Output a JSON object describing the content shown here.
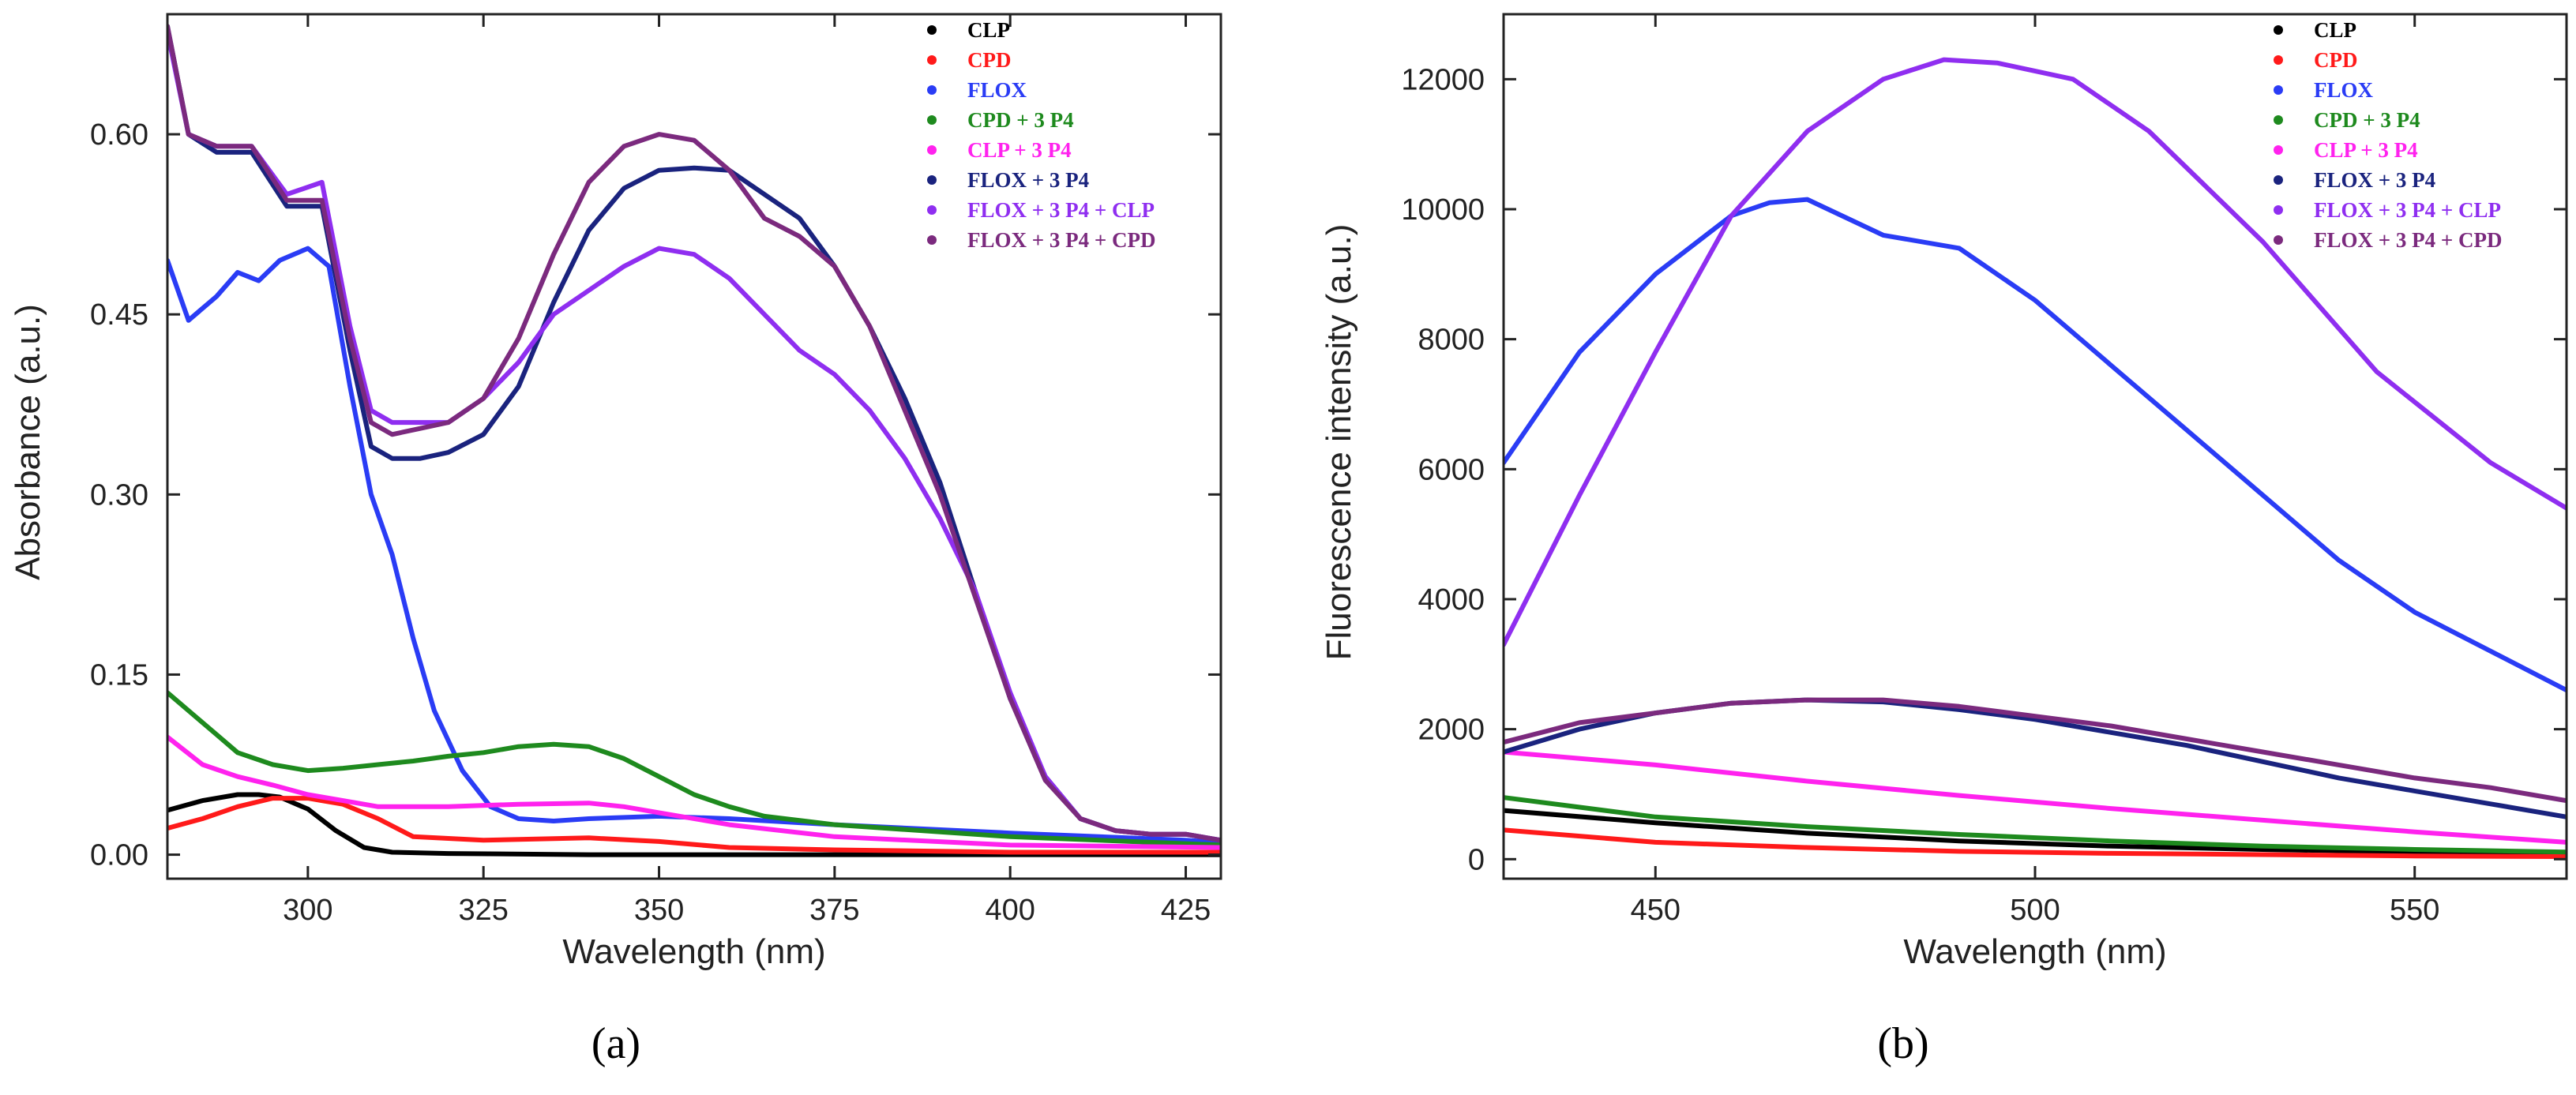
{
  "figure": {
    "panels": [
      {
        "label": "(a)"
      },
      {
        "label": "(b)"
      }
    ]
  },
  "chart_data": [
    {
      "type": "line",
      "panel_label": "(a)",
      "xlabel": "Wavelength (nm)",
      "ylabel": "Absorbance (a.u.)",
      "xlim": [
        280,
        430
      ],
      "ylim": [
        -0.02,
        0.7
      ],
      "xticks": [
        300,
        325,
        350,
        375,
        400,
        425
      ],
      "yticks": [
        0.0,
        0.15,
        0.3,
        0.45,
        0.6
      ],
      "ytick_labels": [
        "0.00",
        "0.15",
        "0.30",
        "0.45",
        "0.60"
      ],
      "legend_position": "top-right",
      "series": [
        {
          "name": "CLP",
          "color": "#000000",
          "x": [
            280,
            285,
            290,
            293,
            296,
            300,
            304,
            308,
            312,
            320,
            340,
            360,
            380,
            430
          ],
          "y": [
            0.037,
            0.045,
            0.05,
            0.05,
            0.048,
            0.038,
            0.02,
            0.006,
            0.002,
            0.001,
            0.0,
            0.0,
            0.0,
            0.0
          ]
        },
        {
          "name": "CPD",
          "color": "#ff1a1a",
          "x": [
            280,
            285,
            290,
            295,
            300,
            305,
            310,
            315,
            325,
            340,
            350,
            360,
            375,
            400,
            430
          ],
          "y": [
            0.022,
            0.03,
            0.04,
            0.047,
            0.047,
            0.042,
            0.03,
            0.015,
            0.012,
            0.014,
            0.011,
            0.006,
            0.004,
            0.002,
            0.002
          ]
        },
        {
          "name": "FLOX",
          "color": "#2a3cf5",
          "x": [
            280,
            283,
            287,
            290,
            293,
            296,
            300,
            303,
            306,
            309,
            312,
            315,
            318,
            322,
            326,
            330,
            335,
            340,
            350,
            360,
            375,
            400,
            425,
            430
          ],
          "y": [
            0.495,
            0.445,
            0.465,
            0.485,
            0.478,
            0.495,
            0.505,
            0.49,
            0.39,
            0.3,
            0.25,
            0.18,
            0.12,
            0.07,
            0.04,
            0.03,
            0.028,
            0.03,
            0.032,
            0.03,
            0.025,
            0.018,
            0.012,
            0.01
          ]
        },
        {
          "name": "CPD + 3 P4",
          "color": "#1e8a1e",
          "x": [
            280,
            283,
            287,
            290,
            295,
            300,
            305,
            310,
            315,
            320,
            325,
            330,
            335,
            340,
            345,
            350,
            355,
            360,
            365,
            375,
            400,
            430
          ],
          "y": [
            0.135,
            0.12,
            0.1,
            0.085,
            0.075,
            0.07,
            0.072,
            0.075,
            0.078,
            0.082,
            0.085,
            0.09,
            0.092,
            0.09,
            0.08,
            0.065,
            0.05,
            0.04,
            0.032,
            0.025,
            0.015,
            0.008
          ]
        },
        {
          "name": "CLP + 3 P4",
          "color": "#ff22ee",
          "x": [
            280,
            285,
            290,
            295,
            300,
            305,
            310,
            320,
            330,
            340,
            345,
            350,
            360,
            375,
            400,
            430
          ],
          "y": [
            0.098,
            0.075,
            0.065,
            0.058,
            0.05,
            0.045,
            0.04,
            0.04,
            0.042,
            0.043,
            0.04,
            0.035,
            0.025,
            0.015,
            0.008,
            0.006
          ]
        },
        {
          "name": "FLOX + 3 P4",
          "color": "#1a237e",
          "x": [
            280,
            283,
            287,
            292,
            297,
            302,
            306,
            309,
            312,
            316,
            320,
            325,
            330,
            335,
            340,
            345,
            350,
            355,
            360,
            365,
            370,
            375,
            380,
            385,
            390,
            395,
            400,
            405,
            410,
            415,
            420,
            425,
            430
          ],
          "y": [
            0.69,
            0.6,
            0.585,
            0.585,
            0.54,
            0.54,
            0.42,
            0.34,
            0.33,
            0.33,
            0.335,
            0.35,
            0.39,
            0.46,
            0.52,
            0.555,
            0.57,
            0.572,
            0.57,
            0.55,
            0.53,
            0.49,
            0.44,
            0.38,
            0.31,
            0.22,
            0.13,
            0.065,
            0.03,
            0.02,
            0.017,
            0.017,
            0.012
          ]
        },
        {
          "name": "FLOX + 3 P4 + CLP",
          "color": "#8f2ef0",
          "x": [
            280,
            283,
            287,
            292,
            297,
            302,
            306,
            309,
            312,
            316,
            320,
            325,
            330,
            335,
            340,
            345,
            350,
            355,
            360,
            365,
            370,
            375,
            380,
            385,
            390,
            395,
            400,
            405,
            410,
            415,
            420,
            425,
            430
          ],
          "y": [
            0.685,
            0.6,
            0.59,
            0.59,
            0.55,
            0.56,
            0.44,
            0.37,
            0.36,
            0.36,
            0.36,
            0.38,
            0.41,
            0.45,
            0.47,
            0.49,
            0.505,
            0.5,
            0.48,
            0.45,
            0.42,
            0.4,
            0.37,
            0.33,
            0.28,
            0.22,
            0.135,
            0.065,
            0.03,
            0.02,
            0.017,
            0.017,
            0.012
          ]
        },
        {
          "name": "FLOX + 3 P4 + CPD",
          "color": "#7b2a7e",
          "x": [
            280,
            283,
            287,
            292,
            297,
            302,
            306,
            309,
            312,
            316,
            320,
            325,
            330,
            335,
            340,
            345,
            350,
            355,
            360,
            365,
            370,
            375,
            380,
            385,
            390,
            395,
            400,
            405,
            410,
            415,
            420,
            425,
            430
          ],
          "y": [
            0.69,
            0.6,
            0.59,
            0.59,
            0.545,
            0.545,
            0.43,
            0.36,
            0.35,
            0.355,
            0.36,
            0.38,
            0.43,
            0.5,
            0.56,
            0.59,
            0.6,
            0.595,
            0.57,
            0.53,
            0.515,
            0.49,
            0.44,
            0.37,
            0.3,
            0.215,
            0.13,
            0.062,
            0.03,
            0.02,
            0.017,
            0.017,
            0.012
          ]
        }
      ]
    },
    {
      "type": "line",
      "panel_label": "(b)",
      "xlabel": "Wavelength (nm)",
      "ylabel": "Fluorescence intensity (a.u.)",
      "xlim": [
        430,
        570
      ],
      "ylim": [
        -300,
        13000
      ],
      "xticks": [
        450,
        500,
        550
      ],
      "yticks": [
        0,
        2000,
        4000,
        6000,
        8000,
        10000,
        12000
      ],
      "ytick_labels": [
        "0",
        "2000",
        "4000",
        "6000",
        "8000",
        "10000",
        "12000"
      ],
      "legend_position": "top-right",
      "series": [
        {
          "name": "CLP",
          "color": "#000000",
          "x": [
            430,
            450,
            470,
            490,
            510,
            530,
            550,
            570
          ],
          "y": [
            750,
            560,
            400,
            280,
            200,
            150,
            110,
            80
          ]
        },
        {
          "name": "CPD",
          "color": "#ff1a1a",
          "x": [
            430,
            450,
            470,
            490,
            510,
            530,
            550,
            570
          ],
          "y": [
            450,
            260,
            180,
            120,
            90,
            70,
            50,
            40
          ]
        },
        {
          "name": "FLOX",
          "color": "#2a3cf5",
          "x": [
            430,
            440,
            450,
            460,
            465,
            470,
            480,
            490,
            500,
            510,
            520,
            530,
            540,
            550,
            560,
            570
          ],
          "y": [
            6100,
            7800,
            9000,
            9900,
            10100,
            10150,
            9600,
            9400,
            8600,
            7600,
            6600,
            5600,
            4600,
            3800,
            3200,
            2600
          ]
        },
        {
          "name": "CPD + 3 P4",
          "color": "#1e8a1e",
          "x": [
            430,
            450,
            470,
            490,
            510,
            530,
            550,
            570
          ],
          "y": [
            950,
            650,
            500,
            380,
            280,
            200,
            150,
            110
          ]
        },
        {
          "name": "CLP + 3 P4",
          "color": "#ff22ee",
          "x": [
            430,
            450,
            470,
            490,
            510,
            530,
            550,
            570
          ],
          "y": [
            1650,
            1450,
            1200,
            980,
            780,
            600,
            420,
            260
          ]
        },
        {
          "name": "FLOX + 3 P4",
          "color": "#1a237e",
          "x": [
            430,
            440,
            450,
            460,
            470,
            480,
            490,
            500,
            510,
            520,
            530,
            540,
            550,
            560,
            570
          ],
          "y": [
            1650,
            2000,
            2250,
            2400,
            2450,
            2420,
            2300,
            2150,
            1950,
            1750,
            1500,
            1250,
            1050,
            850,
            650
          ]
        },
        {
          "name": "FLOX + 3 P4 + CLP",
          "color": "#8f2ef0",
          "x": [
            430,
            440,
            450,
            460,
            470,
            480,
            488,
            495,
            505,
            515,
            530,
            545,
            560,
            570
          ],
          "y": [
            3300,
            5600,
            7800,
            9900,
            11200,
            12000,
            12300,
            12250,
            12000,
            11200,
            9500,
            7500,
            6100,
            5400
          ]
        },
        {
          "name": "FLOX + 3 P4 + CPD",
          "color": "#7b2a7e",
          "x": [
            430,
            440,
            450,
            460,
            470,
            480,
            490,
            500,
            510,
            520,
            530,
            540,
            550,
            560,
            570
          ],
          "y": [
            1800,
            2100,
            2250,
            2400,
            2450,
            2450,
            2350,
            2200,
            2050,
            1850,
            1650,
            1450,
            1250,
            1100,
            900
          ]
        }
      ]
    }
  ]
}
